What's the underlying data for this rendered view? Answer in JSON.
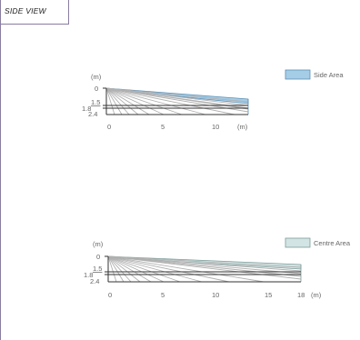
{
  "header": {
    "title": "SIDE VIEW"
  },
  "colors": {
    "side_fill": "#a6cde6",
    "side_stroke": "#5a8fb5",
    "centre_fill": "#d2e4e3",
    "centre_stroke": "#7c9c9a",
    "beam": "#b0b0b0",
    "axis": "#333333",
    "frame": "#8a7da0"
  },
  "side": {
    "unit_top": "(m)",
    "y_ticks": [
      "0",
      "1.5",
      "1.8",
      "2.4"
    ],
    "x_ticks": [
      "0",
      "5",
      "10"
    ],
    "x_unit": "(m)",
    "range_m": 13,
    "legend": "Side Area"
  },
  "centre": {
    "unit_top": "(m)",
    "y_ticks": [
      "0",
      "1.5",
      "1.8",
      "2.4"
    ],
    "x_ticks": [
      "0",
      "5",
      "10",
      "15",
      "18"
    ],
    "x_unit": "(m)",
    "range_m": 18,
    "legend": "Centre Area"
  }
}
